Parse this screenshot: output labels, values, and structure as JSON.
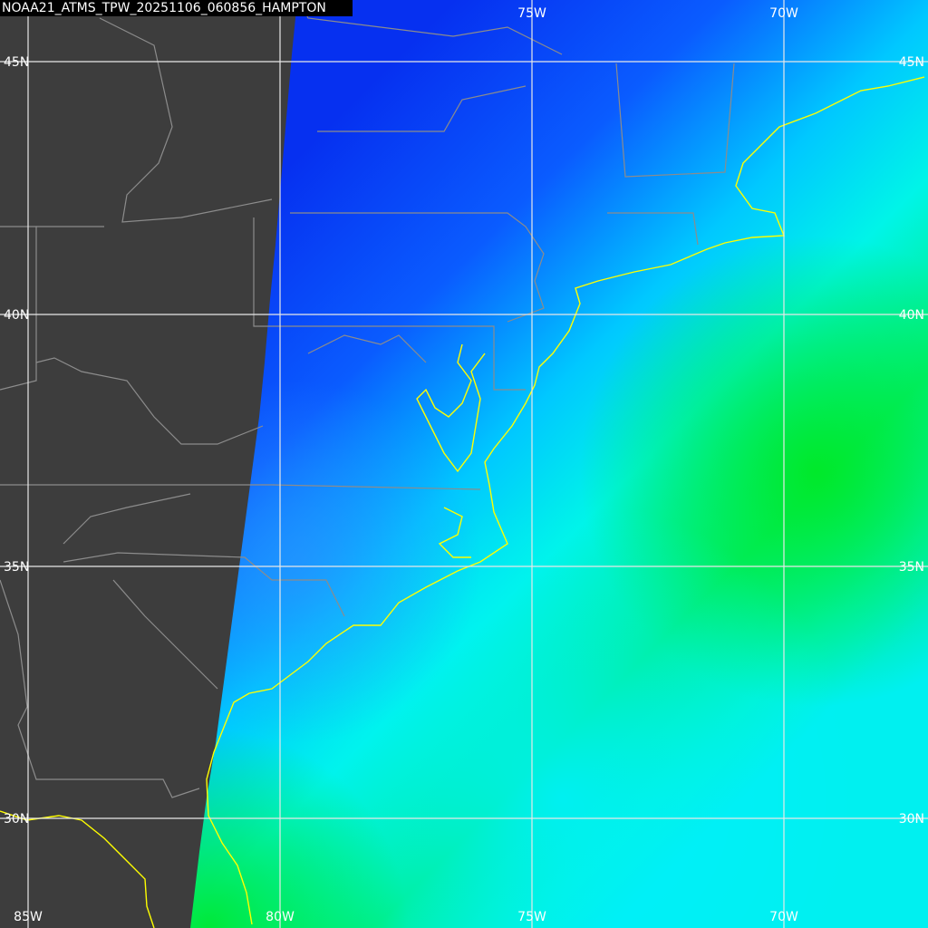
{
  "title": "NOAA21_ATMS_TPW_20251106_060856_HAMPTON",
  "labels": {
    "top": [
      "75W",
      "70W"
    ],
    "bottom": [
      "85W",
      "80W",
      "75W",
      "70W"
    ],
    "left": [
      "45N",
      "40N",
      "35N",
      "30N"
    ],
    "right": [
      "45N",
      "40N",
      "35N",
      "30N"
    ]
  }
}
